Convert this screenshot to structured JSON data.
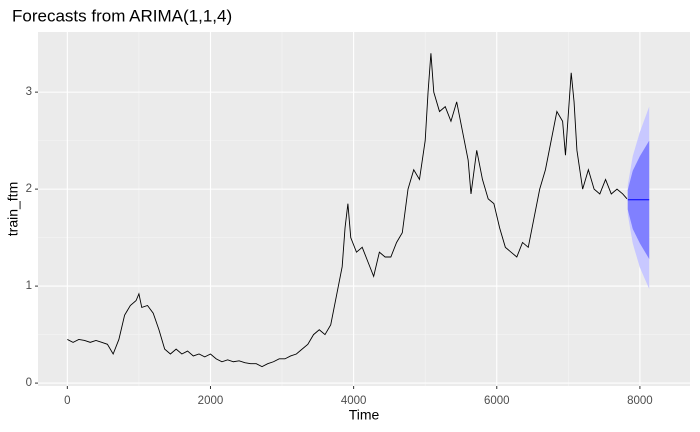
{
  "chart_data": {
    "type": "forecast",
    "title": "Forecasts from ARIMA(1,1,4)",
    "x_label": "Time",
    "y_label": "train_ftm",
    "xlim": [
      -410,
      8700
    ],
    "ylim": [
      -0.03,
      3.62
    ],
    "xticks": [
      0,
      2000,
      4000,
      6000,
      8000
    ],
    "yticks": [
      0,
      1,
      2,
      3
    ],
    "grid": true,
    "history": {
      "color": "#000000",
      "x": [
        0,
        80,
        160,
        240,
        320,
        400,
        480,
        560,
        640,
        720,
        800,
        880,
        960,
        1000,
        1040,
        1120,
        1200,
        1280,
        1360,
        1440,
        1520,
        1600,
        1680,
        1760,
        1840,
        1920,
        2000,
        2080,
        2160,
        2240,
        2320,
        2400,
        2480,
        2560,
        2640,
        2720,
        2800,
        2880,
        2960,
        3040,
        3120,
        3200,
        3280,
        3360,
        3440,
        3520,
        3600,
        3680,
        3760,
        3840,
        3880,
        3920,
        3960,
        4040,
        4120,
        4200,
        4280,
        4360,
        4440,
        4520,
        4600,
        4680,
        4760,
        4840,
        4920,
        5000,
        5040,
        5080,
        5120,
        5200,
        5280,
        5360,
        5440,
        5520,
        5600,
        5640,
        5720,
        5800,
        5880,
        5960,
        6040,
        6120,
        6200,
        6280,
        6360,
        6440,
        6520,
        6600,
        6680,
        6760,
        6840,
        6920,
        6960,
        7040,
        7080,
        7120,
        7200,
        7280,
        7360,
        7440,
        7520,
        7600,
        7680,
        7760,
        7820
      ],
      "values": [
        0.45,
        0.42,
        0.45,
        0.44,
        0.42,
        0.44,
        0.42,
        0.4,
        0.3,
        0.45,
        0.7,
        0.8,
        0.85,
        0.92,
        0.78,
        0.8,
        0.72,
        0.55,
        0.35,
        0.3,
        0.35,
        0.3,
        0.33,
        0.28,
        0.3,
        0.27,
        0.3,
        0.25,
        0.22,
        0.24,
        0.22,
        0.23,
        0.21,
        0.2,
        0.2,
        0.17,
        0.2,
        0.22,
        0.25,
        0.25,
        0.28,
        0.3,
        0.35,
        0.4,
        0.5,
        0.55,
        0.5,
        0.6,
        0.9,
        1.2,
        1.6,
        1.85,
        1.5,
        1.35,
        1.4,
        1.25,
        1.1,
        1.35,
        1.3,
        1.3,
        1.45,
        1.55,
        2.0,
        2.2,
        2.1,
        2.5,
        3.0,
        3.4,
        3.0,
        2.8,
        2.85,
        2.7,
        2.9,
        2.6,
        2.3,
        1.95,
        2.4,
        2.1,
        1.9,
        1.85,
        1.6,
        1.4,
        1.35,
        1.3,
        1.45,
        1.4,
        1.7,
        2.0,
        2.2,
        2.5,
        2.8,
        2.7,
        2.35,
        3.2,
        2.9,
        2.4,
        2.0,
        2.2,
        2.0,
        1.95,
        2.1,
        1.95,
        2.0,
        1.95,
        1.9
      ]
    },
    "forecast": {
      "color": "#0000ff",
      "band80_color": "#8080ff",
      "band95_color": "#c8c8ff",
      "x": [
        7830,
        7900,
        8000,
        8130
      ],
      "mean": [
        1.89,
        1.89,
        1.89,
        1.89
      ],
      "lo80": [
        1.79,
        1.59,
        1.44,
        1.28
      ],
      "hi80": [
        1.99,
        2.19,
        2.34,
        2.5
      ],
      "lo95": [
        1.74,
        1.44,
        1.19,
        0.97
      ],
      "hi95": [
        2.04,
        2.34,
        2.59,
        2.85
      ]
    }
  }
}
